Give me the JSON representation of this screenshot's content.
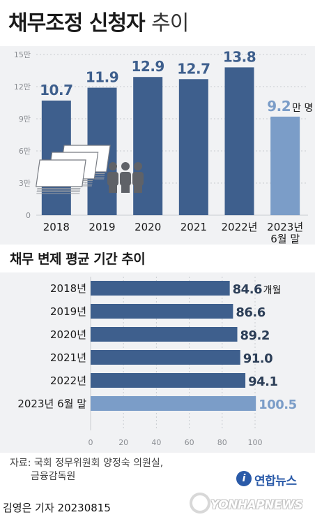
{
  "header": {
    "title": "채무조정 신청자",
    "title_suffix": "추이"
  },
  "chart_data": [
    {
      "type": "bar",
      "orientation": "vertical",
      "categories": [
        "2018",
        "2019",
        "2020",
        "2021",
        "2022년",
        "2023년 6월 말"
      ],
      "values": [
        10.7,
        11.9,
        12.9,
        12.7,
        13.8,
        9.2
      ],
      "data_labels": [
        "10.7",
        "11.9",
        "12.9",
        "12.7",
        "13.8",
        "9.2"
      ],
      "value_unit": "만 명",
      "ylim": [
        0,
        15
      ],
      "y_ticks": [
        0,
        3,
        6,
        9,
        12,
        15
      ],
      "y_tick_labels": [
        "0",
        "3만",
        "6만",
        "9만",
        "12만",
        "15만"
      ],
      "colors": {
        "bar": "#3e5f8d",
        "bar_highlight": "#7b9dc8",
        "label": "#3e5f8d",
        "label_highlight": "#7b9dc8"
      },
      "illustration": "money-and-people-icon"
    },
    {
      "type": "bar",
      "orientation": "horizontal",
      "title": "채무 변제 평균 기간 추이",
      "categories": [
        "2018년",
        "2019년",
        "2020년",
        "2021년",
        "2022년",
        "2023년 6월 말"
      ],
      "values": [
        84.6,
        86.6,
        89.2,
        91.0,
        94.1,
        100.5
      ],
      "data_labels": [
        "84.6",
        "86.6",
        "89.2",
        "91.0",
        "94.1",
        "100.5"
      ],
      "value_unit": "개월",
      "xlim": [
        0,
        100
      ],
      "x_ticks": [
        0,
        20,
        40,
        60,
        80,
        100
      ],
      "x_tick_labels": [
        "0",
        "20",
        "40",
        "60",
        "80",
        "100"
      ],
      "colors": {
        "bar": "#3e5f8d",
        "bar_highlight": "#7b9dc8"
      }
    }
  ],
  "footer": {
    "source_line1": "자료: 국회 정무위원회 양정숙 의원실,",
    "source_line2": "금융감독원",
    "reporter": "김영은 기자  20230815",
    "logo_korean": "연합뉴스",
    "logo_english": "YONHAPNEWS"
  }
}
